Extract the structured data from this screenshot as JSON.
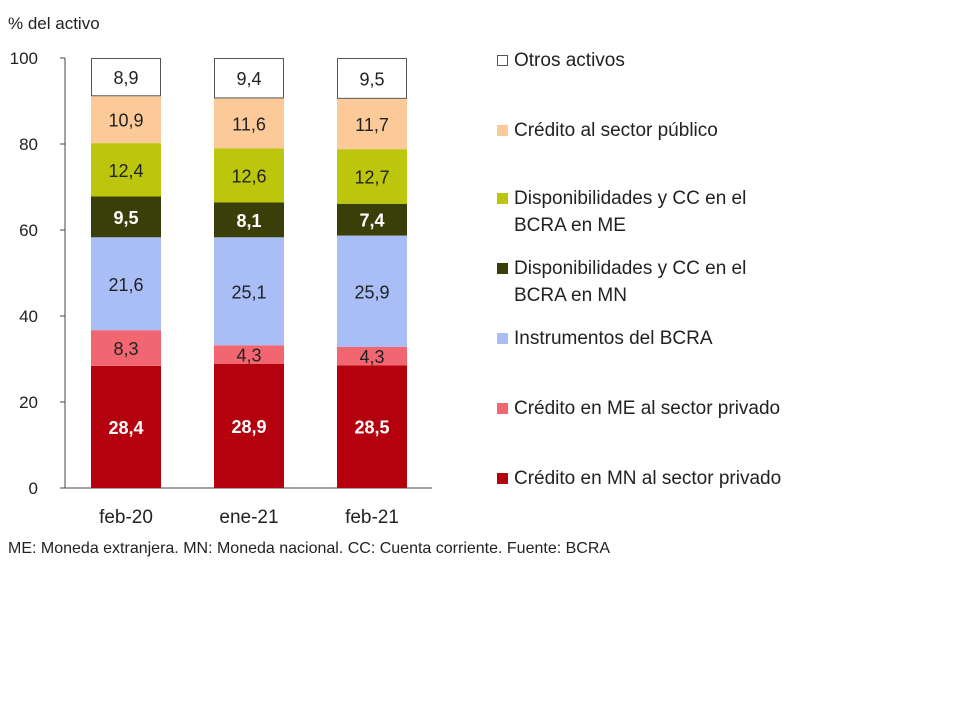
{
  "chart_data": {
    "type": "bar",
    "stacked": true,
    "ylabel": "% del activo",
    "ylim": [
      0,
      100
    ],
    "yticks": [
      "0",
      "20",
      "40",
      "60",
      "80",
      "100"
    ],
    "categories": [
      "feb-20",
      "ene-21",
      "feb-21"
    ],
    "series": [
      {
        "name": "Crédito en MN al sector privado",
        "color": "#b5000d",
        "text_color": "#ffffff",
        "values": [
          28.4,
          28.9,
          28.5
        ],
        "labels": [
          "28,4",
          "28,9",
          "28,5"
        ]
      },
      {
        "name": "Crédito en ME al sector privado",
        "color": "#f26671",
        "text_color": "#222222",
        "values": [
          8.3,
          4.3,
          4.3
        ],
        "labels": [
          "8,3",
          "4,3",
          "4,3"
        ]
      },
      {
        "name": "Instrumentos del BCRA",
        "color": "#a9bdf7",
        "text_color": "#222222",
        "values": [
          21.6,
          25.1,
          25.9
        ],
        "labels": [
          "21,6",
          "25,1",
          "25,9"
        ]
      },
      {
        "name": "Disponibilidades y CC en el BCRA en MN",
        "color": "#3a3f0a",
        "text_color": "#ffffff",
        "values": [
          9.5,
          8.1,
          7.4
        ],
        "labels": [
          "9,5",
          "8,1",
          "7,4"
        ]
      },
      {
        "name": "Disponibilidades y CC en el BCRA en ME",
        "color": "#bcc60c",
        "text_color": "#222222",
        "values": [
          12.4,
          12.6,
          12.7
        ],
        "labels": [
          "12,4",
          "12,6",
          "12,7"
        ]
      },
      {
        "name": "Crédito al sector público",
        "color": "#fcc998",
        "text_color": "#222222",
        "values": [
          10.9,
          11.6,
          11.7
        ],
        "labels": [
          "10,9",
          "11,6",
          "11,7"
        ]
      },
      {
        "name": "Otros activos",
        "color": "#ffffff",
        "text_color": "#222222",
        "values": [
          8.9,
          9.4,
          9.5
        ],
        "labels": [
          "8,9",
          "9,4",
          "9,5"
        ]
      }
    ],
    "legend_order": [
      "Otros activos",
      "Crédito al sector público",
      "Disponibilidades y CC en el BCRA en ME",
      "Disponibilidades y CC en el BCRA en MN",
      "Instrumentos del BCRA",
      "Crédito en ME al sector privado",
      "Crédito en MN al sector privado"
    ],
    "legend_placement": "right",
    "grid": false
  },
  "footnote": "ME: Moneda extranjera. MN: Moneda nacional. CC: Cuenta corriente. Fuente: BCRA"
}
